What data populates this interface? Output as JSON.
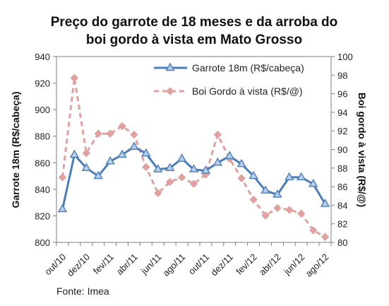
{
  "chart_data": {
    "type": "line",
    "title_lines": [
      "Preço do garrote de 18 meses e da arroba do",
      "boi gordo à vista em Mato Grosso"
    ],
    "ylabel_left": "Garrote 18m (R$/cabeça)",
    "ylabel_right": "Boi gordo à vista (R$/@)",
    "source": "Fonte: Imea",
    "ylim_left": [
      800,
      940
    ],
    "ylim_right": [
      80,
      100
    ],
    "yticks_left": [
      800,
      820,
      840,
      860,
      880,
      900,
      920,
      940
    ],
    "yticks_right": [
      80,
      82,
      84,
      86,
      88,
      90,
      92,
      94,
      96,
      98,
      100
    ],
    "xtick_labels": [
      "out/10",
      "dez/10",
      "fev/11",
      "abr/11",
      "jun/11",
      "ago/11",
      "out/11",
      "dez/11",
      "fev/12",
      "abr/12",
      "jun/12",
      "ago/12"
    ],
    "categories": [
      "out/10",
      "nov/10",
      "dez/10",
      "jan/11",
      "fev/11",
      "mar/11",
      "abr/11",
      "mai/11",
      "jun/11",
      "jul/11",
      "ago/11",
      "set/11",
      "out/11",
      "nov/11",
      "dez/11",
      "jan/12",
      "fev/12",
      "mar/12",
      "abr/12",
      "mai/12",
      "jun/12",
      "jul/12",
      "ago/12"
    ],
    "series": [
      {
        "name": "Garrote 18m (R$/cabeça)",
        "axis": "left",
        "color": "#4a7ebb",
        "marker": "triangle",
        "values": [
          825,
          866,
          856,
          850,
          861,
          866,
          872,
          867,
          855,
          856,
          863,
          855,
          854,
          860,
          865,
          859,
          850,
          839,
          836,
          849,
          849,
          844,
          829
        ]
      },
      {
        "name": "Boi Gordo à vista (R$/@)",
        "axis": "right",
        "color": "#e0a1a1",
        "marker": "diamond",
        "values": [
          87.0,
          97.7,
          89.6,
          91.7,
          91.7,
          92.5,
          91.6,
          88.1,
          85.3,
          86.5,
          87.0,
          86.3,
          87.3,
          91.6,
          89.0,
          86.9,
          84.6,
          82.9,
          83.7,
          83.5,
          83.1,
          81.3,
          80.6
        ]
      }
    ],
    "legend_position": "top-right",
    "grid": false
  }
}
